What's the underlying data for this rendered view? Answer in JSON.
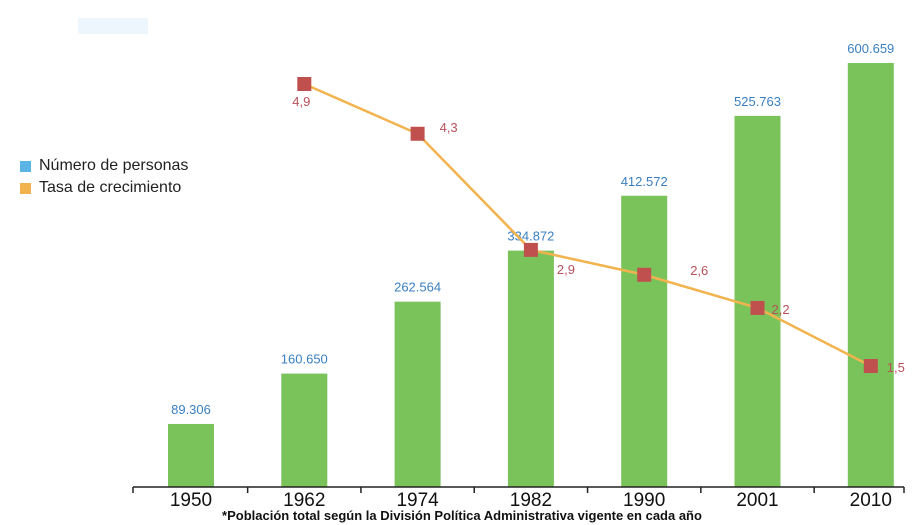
{
  "colors": {
    "bar": "#79c35a",
    "bar_label": "#3a7fc1",
    "line": "#f2b34f",
    "marker": "#c0504d",
    "rate_label": "#b9505a",
    "legend_personas": "#5ab4e6",
    "legend_tasa": "#f2b34f"
  },
  "legend": [
    {
      "label": "Número de personas",
      "color_key": "legend_personas"
    },
    {
      "label": "Tasa de crecimiento",
      "color_key": "legend_tasa"
    }
  ],
  "footnote": "*Población total según la División Política Administrativa vigente en cada año",
  "chart_data": {
    "type": "bar",
    "categories": [
      "1950",
      "1962",
      "1974",
      "1982",
      "1990",
      "2001",
      "2010"
    ],
    "series": [
      {
        "name": "Número de personas",
        "type": "bar",
        "values": [
          89306,
          160650,
          262564,
          334872,
          412572,
          525763,
          600659
        ],
        "labels": [
          "89.306",
          "160.650",
          "262.564",
          "334.872",
          "412.572",
          "525.763",
          "600.659"
        ]
      },
      {
        "name": "Tasa de crecimiento",
        "type": "line",
        "x": [
          "1962",
          "1974",
          "1982",
          "1990",
          "2001",
          "2010"
        ],
        "values": [
          4.9,
          4.3,
          2.9,
          2.6,
          2.2,
          1.5
        ],
        "labels": [
          "4,9",
          "4,3",
          "2,9",
          "2,6",
          "2,2",
          "1,5"
        ]
      }
    ],
    "ylim_bars": [
      0,
      620000
    ],
    "ylim_rate": [
      0,
      5.5
    ],
    "legend_position": "left"
  }
}
